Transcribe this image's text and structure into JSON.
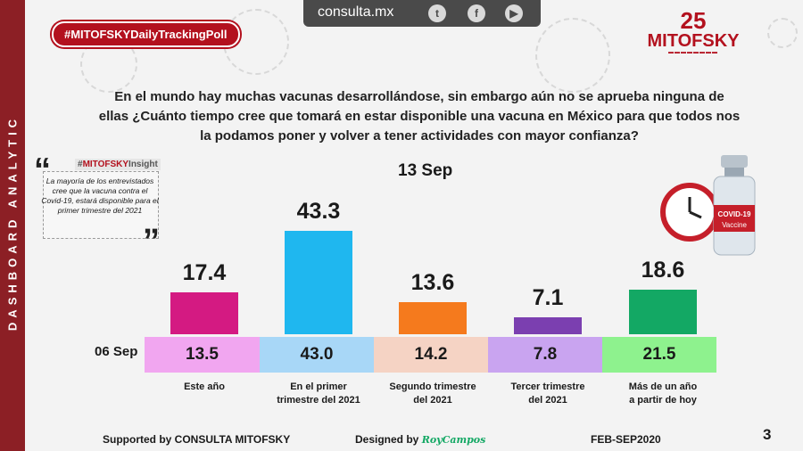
{
  "sidebar": {
    "label": "DASHBOARD ANALYTIC"
  },
  "header": {
    "poll_tag": "#MITOFSKYDailyTrackingPoll",
    "site": "consulta.mx",
    "social_icons": [
      "twitter-icon",
      "facebook-icon",
      "youtube-icon"
    ],
    "logo": {
      "anniversary": "25",
      "name": "MITOFSKY"
    }
  },
  "question": "En el mundo hay muchas vacunas desarrollándose, sin embargo aún no se aprueba ninguna de ellas ¿Cuánto tiempo cree que tomará en estar disponible una vacuna en México para que todos nos la podamos poner y volver a tener actividades con mayor confianza?",
  "insight": {
    "tag_prefix": "#",
    "tag_brand": "MITOFSKY",
    "tag_suffix": "Insight",
    "text": "La mayoría de los entrevistados cree que la vacuna contra el Covid-19, estará disponible para el primer trimestre del 2021"
  },
  "colors": {
    "brand_red": "#b3111e",
    "current_bars": [
      "#d41a82",
      "#1fb7ef",
      "#f57a1d",
      "#7b3fb0",
      "#13a864"
    ],
    "previous_cells": [
      "#f1a6f0",
      "#a8d7f7",
      "#f5d3c4",
      "#c9a4f0",
      "#8ef28e"
    ]
  },
  "chart_data": {
    "type": "bar",
    "title": "",
    "categories": [
      "Este año",
      "En el primer trimestre del 2021",
      "Segundo trimestre del 2021",
      "Tercer trimestre del 2021",
      "Más de un año a partir de hoy"
    ],
    "series": [
      {
        "name": "13 Sep",
        "values": [
          17.4,
          43.3,
          13.6,
          7.1,
          18.6
        ]
      },
      {
        "name": "06 Sep",
        "values": [
          13.5,
          43.0,
          14.2,
          7.8,
          21.5
        ]
      }
    ],
    "ylim": [
      0,
      45
    ],
    "value_labels": {
      "current": [
        "17.4",
        "43.3",
        "13.6",
        "7.1",
        "18.6"
      ],
      "previous": [
        "13.5",
        "43.0",
        "14.2",
        "7.8",
        "21.5"
      ]
    },
    "category_lines": [
      [
        "Este año"
      ],
      [
        "En el primer",
        "trimestre del 2021"
      ],
      [
        "Segundo trimestre",
        "del 2021"
      ],
      [
        "Tercer trimestre",
        "del 2021"
      ],
      [
        "Más de un año",
        "a partir de hoy"
      ]
    ]
  },
  "footer": {
    "supported_by": "Supported by  CONSULTA  MITOFSKY",
    "designed_by": "Designed by",
    "designer": "RoyCampos",
    "period": "FEB-SEP2020",
    "page": "3"
  },
  "graphic": {
    "vial_label": "COVID-19",
    "vial_sub": "Vaccine"
  }
}
